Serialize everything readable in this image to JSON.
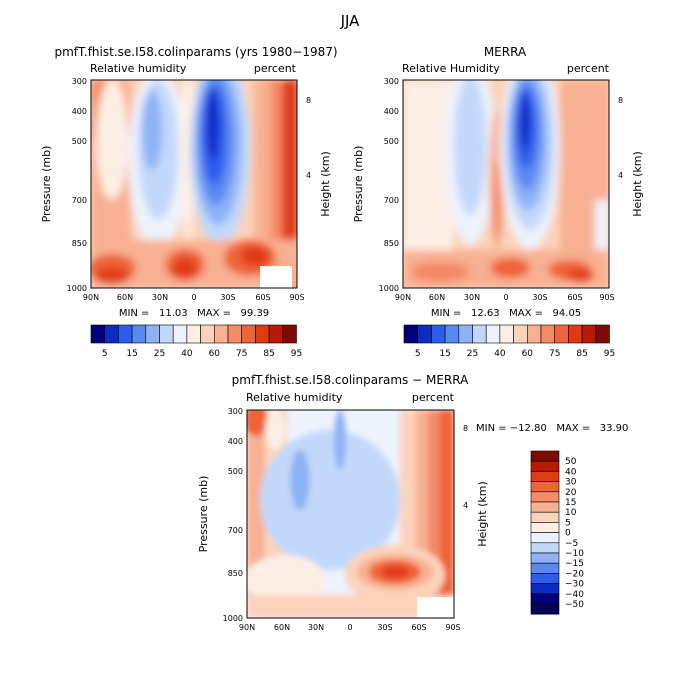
{
  "title": "JJA",
  "chart_data": [
    {
      "type": "heatmap",
      "title": "pmfT.fhist.se.I58.colinparams (yrs 1980−1987)",
      "left_label": "Relative humidity",
      "right_label": "percent",
      "ylabel": "Pressure (mb)",
      "ylabel_right": "Height (km)",
      "xticks": [
        "90N",
        "60N",
        "30N",
        "0",
        "30S",
        "60S",
        "90S"
      ],
      "yticks": [
        "300",
        "400",
        "500",
        "700",
        "850",
        "1000"
      ],
      "yticks_right": [
        "8",
        "4"
      ],
      "ylim": [
        300,
        1000
      ],
      "xlim": [
        90,
        -90
      ],
      "stats": "MIN =   11.03   MAX =   99.39",
      "colorbar": {
        "orientation": "horizontal",
        "levels": [
          "5",
          "15",
          "25",
          "40",
          "60",
          "75",
          "85",
          "95"
        ],
        "colors": [
          "#00007a",
          "#0a2cc4",
          "#2e5cec",
          "#5a88f2",
          "#8eb2f6",
          "#c2d8fb",
          "#eef2fd",
          "#fdeee4",
          "#fbd3bb",
          "#f8b092",
          "#f48a66",
          "#ef6338",
          "#e03a12",
          "#b81a05",
          "#7d0a03"
        ]
      }
    },
    {
      "type": "heatmap",
      "title": "MERRA",
      "left_label": "Relative Humidity",
      "right_label": "percent",
      "ylabel": "Pressure (mb)",
      "ylabel_right": "Height (km)",
      "xticks": [
        "90N",
        "60N",
        "30N",
        "0",
        "30S",
        "60S",
        "90S"
      ],
      "yticks": [
        "300",
        "400",
        "500",
        "700",
        "850",
        "1000"
      ],
      "yticks_right": [
        "8",
        "4"
      ],
      "ylim": [
        300,
        1000
      ],
      "xlim": [
        90,
        -90
      ],
      "stats": "MIN =   12.63   MAX =   94.05",
      "colorbar": {
        "orientation": "horizontal",
        "levels": [
          "5",
          "15",
          "25",
          "40",
          "60",
          "75",
          "85",
          "95"
        ],
        "colors": [
          "#00007a",
          "#0a2cc4",
          "#2e5cec",
          "#5a88f2",
          "#8eb2f6",
          "#c2d8fb",
          "#eef2fd",
          "#fdeee4",
          "#fbd3bb",
          "#f8b092",
          "#f48a66",
          "#ef6338",
          "#e03a12",
          "#b81a05",
          "#7d0a03"
        ]
      }
    },
    {
      "type": "heatmap",
      "title": "pmfT.fhist.se.I58.colinparams − MERRA",
      "left_label": "Relative humidity",
      "right_label": "percent",
      "ylabel": "Pressure (mb)",
      "ylabel_right": "Height (km)",
      "xticks": [
        "90N",
        "60N",
        "30N",
        "0",
        "30S",
        "60S",
        "90S"
      ],
      "yticks": [
        "300",
        "400",
        "500",
        "700",
        "850",
        "1000"
      ],
      "yticks_right": [
        "8",
        "4"
      ],
      "ylim": [
        300,
        1000
      ],
      "xlim": [
        90,
        -90
      ],
      "stats": "MIN = −12.80   MAX =   33.90",
      "colorbar": {
        "orientation": "vertical",
        "levels": [
          "50",
          "40",
          "30",
          "20",
          "15",
          "10",
          "5",
          "0",
          "−5",
          "−10",
          "−15",
          "−20",
          "−30",
          "−40",
          "−50"
        ],
        "colors": [
          "#7d0a03",
          "#b81a05",
          "#e03a12",
          "#ef6338",
          "#f48a66",
          "#f8b092",
          "#fbd3bb",
          "#fdeee4",
          "#eef2fd",
          "#c2d8fb",
          "#8eb2f6",
          "#5a88f2",
          "#2e5cec",
          "#0a2cc4",
          "#00007a",
          "#000055"
        ]
      }
    }
  ]
}
